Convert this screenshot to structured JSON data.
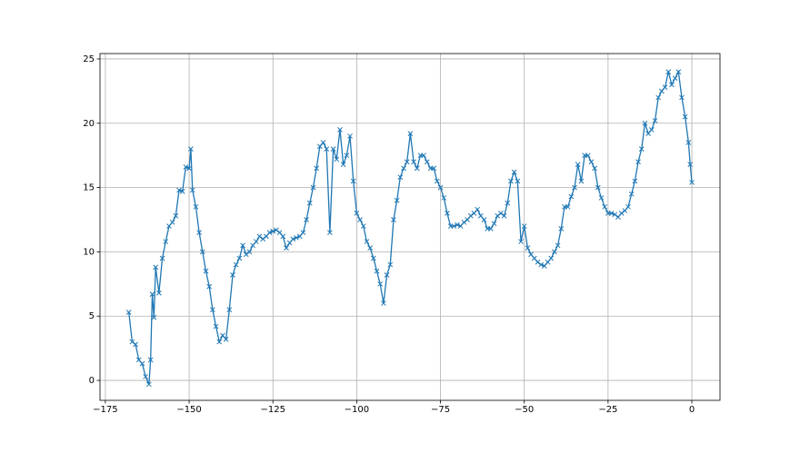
{
  "chart_data": {
    "type": "line",
    "marker": "x",
    "color": "#1f77b4",
    "grid": true,
    "x": [
      -168,
      -167,
      -166,
      -165,
      -164,
      -163,
      -162,
      -161.5,
      -161,
      -160.5,
      -160,
      -159,
      -158,
      -157,
      -156,
      -155,
      -154,
      -153,
      -152,
      -151,
      -150,
      -149.5,
      -149,
      -148,
      -147,
      -146,
      -145,
      -144,
      -143,
      -142,
      -141,
      -140,
      -139,
      -138,
      -137,
      -136,
      -135,
      -134,
      -133,
      -132,
      -131,
      -130,
      -129,
      -128,
      -127,
      -126,
      -125,
      -124,
      -123,
      -122,
      -121,
      -120,
      -119,
      -118,
      -117,
      -116,
      -115,
      -114,
      -113,
      -112,
      -111,
      -110,
      -109,
      -108,
      -107,
      -106,
      -105,
      -104,
      -103,
      -102,
      -101,
      -100,
      -99,
      -98,
      -97,
      -96,
      -95,
      -94,
      -93,
      -92,
      -91,
      -90,
      -89,
      -88,
      -87,
      -86,
      -85,
      -84,
      -83,
      -82,
      -81,
      -80,
      -79,
      -78,
      -77,
      -76,
      -75,
      -74,
      -73,
      -72,
      -71,
      -70,
      -69,
      -68,
      -67,
      -66,
      -65,
      -64,
      -63,
      -62,
      -61,
      -60,
      -59,
      -58,
      -57,
      -56,
      -55,
      -54,
      -53,
      -52,
      -51,
      -50,
      -49,
      -48,
      -47,
      -46,
      -45,
      -44,
      -43,
      -42,
      -41,
      -40,
      -39,
      -38,
      -37,
      -36,
      -35,
      -34,
      -33,
      -32,
      -31,
      -30,
      -29,
      -28,
      -27,
      -26,
      -25,
      -24,
      -23,
      -22,
      -21,
      -20,
      -19,
      -18,
      -17,
      -16,
      -15,
      -14,
      -13,
      -12,
      -11,
      -10,
      -9,
      -8,
      -7,
      -6,
      -5,
      -4,
      -3,
      -2,
      -1,
      -0.5,
      0
    ],
    "values": [
      5.3,
      3.0,
      2.8,
      1.6,
      1.3,
      0.3,
      -0.3,
      1.6,
      6.7,
      4.9,
      8.8,
      6.8,
      9.5,
      10.8,
      12.0,
      12.3,
      12.8,
      14.8,
      14.7,
      16.6,
      16.5,
      18.0,
      14.8,
      13.5,
      11.5,
      10.0,
      8.5,
      7.3,
      5.5,
      4.2,
      3.0,
      3.5,
      3.2,
      5.5,
      8.2,
      9.0,
      9.5,
      10.5,
      9.8,
      10.0,
      10.5,
      10.8,
      11.2,
      11.0,
      11.2,
      11.5,
      11.6,
      11.7,
      11.5,
      11.2,
      10.3,
      10.7,
      11.0,
      11.1,
      11.2,
      11.5,
      12.5,
      13.8,
      15.0,
      16.5,
      18.2,
      18.5,
      18.0,
      11.5,
      18.0,
      17.2,
      19.5,
      16.8,
      17.5,
      19.0,
      15.5,
      13.0,
      12.5,
      12.0,
      10.8,
      10.3,
      9.5,
      8.5,
      7.5,
      6.0,
      8.2,
      9.0,
      12.5,
      14.0,
      15.8,
      16.5,
      17.0,
      19.2,
      17.0,
      16.5,
      17.5,
      17.5,
      17.0,
      16.5,
      16.5,
      15.5,
      15.0,
      14.2,
      13.0,
      12.0,
      12.0,
      12.1,
      12.0,
      12.3,
      12.5,
      12.8,
      13.0,
      13.3,
      12.8,
      12.5,
      11.8,
      11.8,
      12.2,
      12.8,
      13.0,
      12.8,
      13.8,
      15.5,
      16.2,
      15.5,
      10.8,
      12.0,
      10.3,
      9.8,
      9.5,
      9.2,
      9.0,
      8.9,
      9.2,
      9.5,
      10.0,
      10.5,
      11.8,
      13.5,
      13.5,
      14.3,
      15.0,
      16.8,
      15.5,
      17.5,
      17.5,
      17.0,
      16.5,
      15.0,
      14.2,
      13.5,
      13.0,
      13.0,
      12.9,
      12.7,
      13.0,
      13.2,
      13.5,
      14.5,
      15.5,
      17.0,
      18.0,
      20.0,
      19.2,
      19.5,
      20.2,
      22.0,
      22.5,
      22.8,
      24.0,
      23.0,
      23.5,
      24.0,
      22.0,
      20.5,
      18.5,
      16.8,
      15.4
    ],
    "xlim": [
      -176.6,
      8.4
    ],
    "xticks": [
      {
        "value": -175,
        "label": "−175"
      },
      {
        "value": -150,
        "label": "−150"
      },
      {
        "value": -125,
        "label": "−125"
      },
      {
        "value": -100,
        "label": "−100"
      },
      {
        "value": -75,
        "label": "−75"
      },
      {
        "value": -50,
        "label": "−50"
      },
      {
        "value": -25,
        "label": "−25"
      },
      0
    ],
    "ylim": [
      -1.55,
      25.42
    ],
    "yticks": [
      0,
      5,
      10,
      15,
      20,
      25
    ]
  }
}
